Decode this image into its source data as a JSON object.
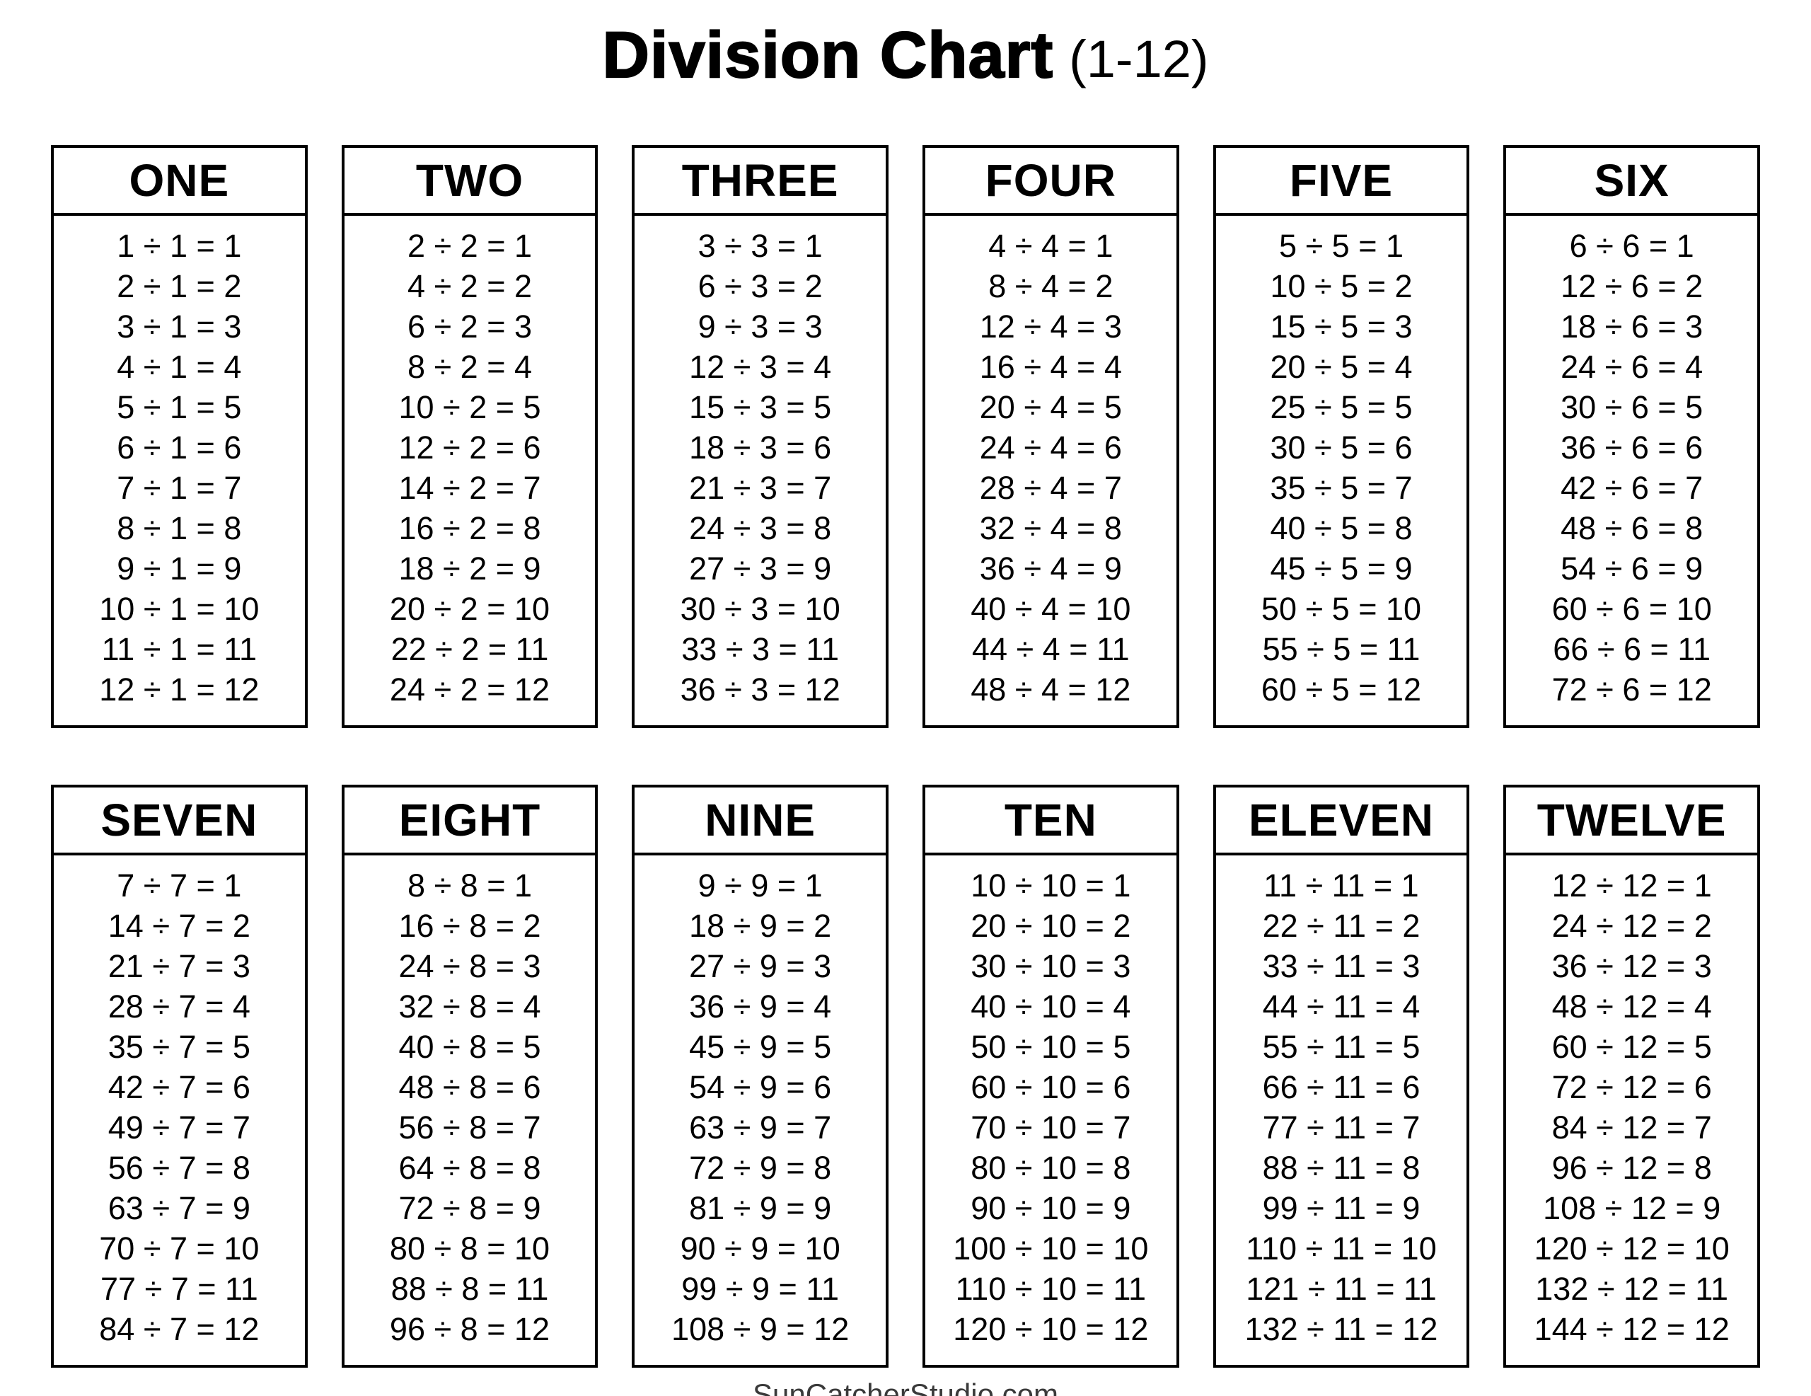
{
  "page": {
    "title": {
      "main": "Division Chart",
      "range": "(1-12)"
    },
    "footer": {
      "text": "SunCatcherStudio.com"
    }
  },
  "colors": {
    "ink": "#000000",
    "border": "#000000",
    "footer_text": "#3a3a3a",
    "background": "#ffffff"
  },
  "tables": [
    {
      "label": "ONE",
      "divisor": 1,
      "equations": [
        "1 ÷ 1 = 1",
        "2 ÷ 1 = 2",
        "3 ÷ 1 = 3",
        "4 ÷ 1 = 4",
        "5 ÷ 1 = 5",
        "6 ÷ 1 = 6",
        "7 ÷ 1 = 7",
        "8 ÷ 1 = 8",
        "9 ÷ 1 = 9",
        "10 ÷ 1 = 10",
        "11 ÷ 1 = 11",
        "12 ÷ 1 = 12"
      ]
    },
    {
      "label": "TWO",
      "divisor": 2,
      "equations": [
        "2 ÷ 2 = 1",
        "4 ÷ 2 = 2",
        "6 ÷ 2 = 3",
        "8 ÷ 2 = 4",
        "10 ÷ 2 = 5",
        "12 ÷ 2 = 6",
        "14 ÷ 2 = 7",
        "16 ÷ 2 = 8",
        "18 ÷ 2 = 9",
        "20 ÷ 2 = 10",
        "22 ÷ 2 = 11",
        "24 ÷ 2 = 12"
      ]
    },
    {
      "label": "THREE",
      "divisor": 3,
      "equations": [
        "3 ÷ 3 = 1",
        "6 ÷ 3 = 2",
        "9 ÷ 3 = 3",
        "12 ÷ 3 = 4",
        "15 ÷ 3 = 5",
        "18 ÷ 3 = 6",
        "21 ÷ 3 = 7",
        "24 ÷ 3 = 8",
        "27 ÷ 3 = 9",
        "30 ÷ 3 = 10",
        "33 ÷ 3 = 11",
        "36 ÷ 3 = 12"
      ]
    },
    {
      "label": "FOUR",
      "divisor": 4,
      "equations": [
        "4 ÷ 4 = 1",
        "8 ÷ 4 = 2",
        "12 ÷ 4 = 3",
        "16 ÷ 4 = 4",
        "20 ÷ 4 = 5",
        "24 ÷ 4 = 6",
        "28 ÷ 4 = 7",
        "32 ÷ 4 = 8",
        "36 ÷ 4 = 9",
        "40 ÷ 4 = 10",
        "44 ÷ 4 = 11",
        "48 ÷ 4 = 12"
      ]
    },
    {
      "label": "FIVE",
      "divisor": 5,
      "equations": [
        "5 ÷ 5 = 1",
        "10 ÷ 5 = 2",
        "15 ÷ 5 = 3",
        "20 ÷ 5 = 4",
        "25 ÷ 5 = 5",
        "30 ÷ 5 = 6",
        "35 ÷ 5 = 7",
        "40 ÷ 5 = 8",
        "45 ÷ 5 = 9",
        "50 ÷ 5 = 10",
        "55 ÷ 5 = 11",
        "60 ÷ 5 = 12"
      ]
    },
    {
      "label": "SIX",
      "divisor": 6,
      "equations": [
        "6 ÷ 6 = 1",
        "12 ÷ 6 = 2",
        "18 ÷ 6 = 3",
        "24 ÷ 6 = 4",
        "30 ÷ 6 = 5",
        "36 ÷ 6 = 6",
        "42 ÷ 6 = 7",
        "48 ÷ 6 = 8",
        "54 ÷ 6 = 9",
        "60 ÷ 6 = 10",
        "66 ÷ 6 = 11",
        "72 ÷ 6 = 12"
      ]
    },
    {
      "label": "SEVEN",
      "divisor": 7,
      "equations": [
        "7 ÷ 7 = 1",
        "14 ÷ 7 = 2",
        "21 ÷ 7 = 3",
        "28 ÷ 7 = 4",
        "35 ÷ 7 = 5",
        "42 ÷ 7 = 6",
        "49 ÷ 7 = 7",
        "56 ÷ 7 = 8",
        "63 ÷ 7 = 9",
        "70 ÷ 7 = 10",
        "77 ÷ 7 = 11",
        "84 ÷ 7 = 12"
      ]
    },
    {
      "label": "EIGHT",
      "divisor": 8,
      "equations": [
        "8 ÷ 8 = 1",
        "16 ÷ 8 = 2",
        "24 ÷ 8 = 3",
        "32 ÷ 8 = 4",
        "40 ÷ 8 = 5",
        "48 ÷ 8 = 6",
        "56 ÷ 8 = 7",
        "64 ÷ 8 = 8",
        "72 ÷ 8 = 9",
        "80 ÷ 8 = 10",
        "88 ÷ 8 = 11",
        "96 ÷ 8 = 12"
      ]
    },
    {
      "label": "NINE",
      "divisor": 9,
      "equations": [
        "9 ÷ 9 = 1",
        "18 ÷ 9 = 2",
        "27 ÷ 9 = 3",
        "36 ÷ 9 = 4",
        "45 ÷ 9 = 5",
        "54 ÷ 9 = 6",
        "63 ÷ 9 = 7",
        "72 ÷ 9 = 8",
        "81 ÷ 9 = 9",
        "90 ÷ 9 = 10",
        "99 ÷ 9 = 11",
        "108 ÷ 9 = 12"
      ]
    },
    {
      "label": "TEN",
      "divisor": 10,
      "equations": [
        "10 ÷ 10 = 1",
        "20 ÷ 10 = 2",
        "30 ÷ 10 = 3",
        "40 ÷ 10 = 4",
        "50 ÷ 10 = 5",
        "60 ÷ 10 = 6",
        "70 ÷ 10 = 7",
        "80 ÷ 10 = 8",
        "90 ÷ 10 = 9",
        "100 ÷ 10 = 10",
        "110 ÷ 10 = 11",
        "120 ÷ 10 = 12"
      ]
    },
    {
      "label": "ELEVEN",
      "divisor": 11,
      "equations": [
        "11 ÷ 11 = 1",
        "22 ÷ 11 = 2",
        "33 ÷ 11 = 3",
        "44 ÷ 11 = 4",
        "55 ÷ 11 = 5",
        "66 ÷ 11 = 6",
        "77 ÷ 11 = 7",
        "88 ÷ 11 = 8",
        "99 ÷ 11 = 9",
        "110 ÷ 11 = 10",
        "121 ÷ 11 = 11",
        "132 ÷ 11 = 12"
      ]
    },
    {
      "label": "TWELVE",
      "divisor": 12,
      "equations": [
        "12 ÷ 12 = 1",
        "24 ÷ 12 = 2",
        "36 ÷ 12 = 3",
        "48 ÷ 12 = 4",
        "60 ÷ 12 = 5",
        "72 ÷ 12 = 6",
        "84 ÷ 12 = 7",
        "96 ÷ 12 = 8",
        "108 ÷ 12 = 9",
        "120 ÷ 12 = 10",
        "132 ÷ 12 = 11",
        "144 ÷ 12 = 12"
      ]
    }
  ]
}
